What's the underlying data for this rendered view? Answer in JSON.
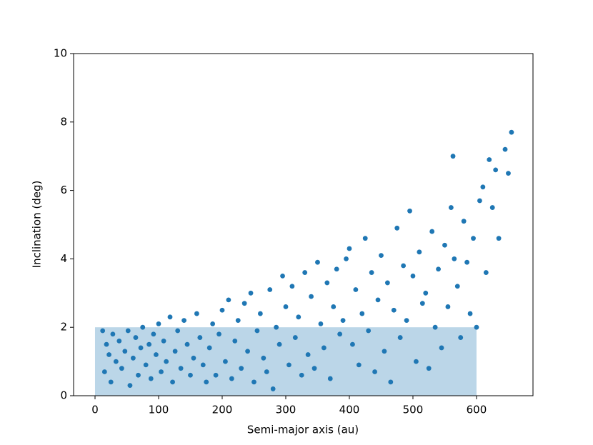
{
  "chart_data": {
    "type": "scatter",
    "xlabel": "Semi-major axis (au)",
    "ylabel": "Inclination (deg)",
    "xlim": [
      -33.7,
      688.8
    ],
    "ylim": [
      0,
      10
    ],
    "xticks": [
      0,
      100,
      200,
      300,
      400,
      500,
      600
    ],
    "yticks": [
      0,
      2,
      4,
      6,
      8,
      10
    ],
    "color": "#1f77b4",
    "span": {
      "x": [
        0,
        600
      ],
      "y": [
        0,
        2
      ],
      "color": "#1f77b4",
      "alpha": 0.3
    },
    "x": [
      12,
      15,
      18,
      22,
      25,
      28,
      33,
      38,
      42,
      47,
      52,
      55,
      60,
      64,
      68,
      72,
      75,
      80,
      85,
      88,
      92,
      96,
      100,
      104,
      108,
      112,
      118,
      122,
      126,
      130,
      135,
      140,
      145,
      150,
      155,
      160,
      165,
      170,
      175,
      180,
      185,
      190,
      195,
      200,
      205,
      210,
      215,
      220,
      225,
      230,
      235,
      240,
      245,
      250,
      255,
      260,
      265,
      270,
      275,
      280,
      285,
      290,
      295,
      300,
      305,
      310,
      315,
      320,
      325,
      330,
      335,
      340,
      345,
      350,
      355,
      360,
      365,
      370,
      375,
      380,
      385,
      390,
      395,
      400,
      405,
      410,
      415,
      420,
      425,
      430,
      435,
      440,
      445,
      450,
      455,
      460,
      465,
      470,
      475,
      480,
      485,
      490,
      495,
      500,
      505,
      510,
      515,
      520,
      525,
      530,
      535,
      540,
      545,
      550,
      555,
      560,
      565,
      570,
      575,
      580,
      585,
      590,
      595,
      600,
      605,
      610,
      615,
      620,
      625,
      630,
      635,
      645,
      650,
      655,
      563
    ],
    "y": [
      1.9,
      0.7,
      1.5,
      1.2,
      0.4,
      1.8,
      1.0,
      1.6,
      0.8,
      1.3,
      1.9,
      0.3,
      1.1,
      1.7,
      0.6,
      1.4,
      2.0,
      0.9,
      1.5,
      0.5,
      1.8,
      1.2,
      2.1,
      0.7,
      1.6,
      1.0,
      2.3,
      0.4,
      1.3,
      1.9,
      0.8,
      2.2,
      1.5,
      0.6,
      1.1,
      2.4,
      1.7,
      0.9,
      0.4,
      1.4,
      2.1,
      0.6,
      1.8,
      2.5,
      1.0,
      2.8,
      0.5,
      1.6,
      2.2,
      0.8,
      2.7,
      1.3,
      3.0,
      0.4,
      1.9,
      2.4,
      1.1,
      0.7,
      3.1,
      0.2,
      2.0,
      1.5,
      3.5,
      2.6,
      0.9,
      3.2,
      1.7,
      2.3,
      0.6,
      3.6,
      1.2,
      2.9,
      0.8,
      3.9,
      2.1,
      1.4,
      3.3,
      0.5,
      2.6,
      3.7,
      1.8,
      2.2,
      4.0,
      4.3,
      1.5,
      3.1,
      0.9,
      2.4,
      4.6,
      1.9,
      3.6,
      0.7,
      2.8,
      4.1,
      1.3,
      3.3,
      0.4,
      2.5,
      4.9,
      1.7,
      3.8,
      2.2,
      5.4,
      3.5,
      1.0,
      4.2,
      2.7,
      3.0,
      0.8,
      4.8,
      2.0,
      3.7,
      1.4,
      4.4,
      2.6,
      5.5,
      4.0,
      3.2,
      1.7,
      5.1,
      3.9,
      2.4,
      4.6,
      2.0,
      5.7,
      6.1,
      3.6,
      6.9,
      5.5,
      6.6,
      4.6,
      7.2,
      6.5,
      7.7,
      7.0
    ]
  }
}
